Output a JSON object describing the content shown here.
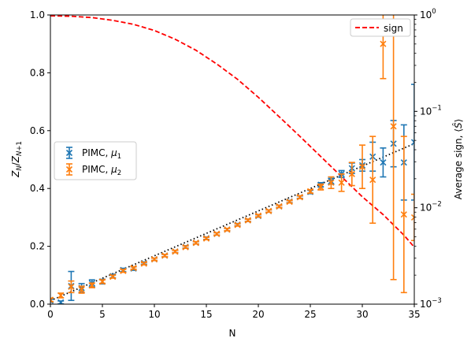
{
  "chart_data": {
    "type": "scatter",
    "title": "",
    "xlabel": "N",
    "ylabel_left": "Z_N/Z_{N+1}",
    "ylabel_right": "Average sign, ⟨Ŝ⟩",
    "xlim": [
      0,
      35
    ],
    "ylim_left": [
      0,
      1.0
    ],
    "ylim_right": [
      0.001,
      1.0
    ],
    "right_scale": "log",
    "grid": false,
    "x_ticks": [
      "0",
      "5",
      "10",
      "15",
      "20",
      "25",
      "30",
      "35"
    ],
    "y_ticks_left": [
      "0.0",
      "0.2",
      "0.4",
      "0.6",
      "0.8",
      "1.0"
    ],
    "y_ticks_right": [
      "10",
      "10",
      "10",
      "10"
    ],
    "y_ticks_right_exp": [
      "−3",
      "−2",
      "−1",
      "0"
    ],
    "series": [
      {
        "name": "PIMC, μ₁",
        "label_main": "PIMC, ",
        "label_mu": "μ",
        "label_sub": "1",
        "color": "#1f77b4",
        "axis": "left",
        "marker": "x",
        "x": [
          0,
          1,
          2,
          3,
          4,
          5,
          6,
          7,
          8,
          9,
          10,
          11,
          12,
          13,
          14,
          15,
          16,
          17,
          18,
          19,
          20,
          21,
          22,
          23,
          24,
          25,
          26,
          27,
          28,
          29,
          30,
          31,
          32,
          33,
          34,
          35
        ],
        "y": [
          0.012,
          0.006,
          0.063,
          0.056,
          0.072,
          0.078,
          0.097,
          0.118,
          0.123,
          0.142,
          0.155,
          0.168,
          0.182,
          0.198,
          0.212,
          0.228,
          0.243,
          0.258,
          0.275,
          0.29,
          0.305,
          0.322,
          0.338,
          0.355,
          0.37,
          0.388,
          0.413,
          0.425,
          0.45,
          0.47,
          0.48,
          0.51,
          0.49,
          0.555,
          0.49,
          0.56
        ],
        "err": [
          0.005,
          0.005,
          0.05,
          0.015,
          0.012,
          0.008,
          0.006,
          0.006,
          0.006,
          0.004,
          0.004,
          0.004,
          0.004,
          0.004,
          0.004,
          0.004,
          0.004,
          0.004,
          0.004,
          0.004,
          0.004,
          0.004,
          0.004,
          0.004,
          0.004,
          0.006,
          0.007,
          0.01,
          0.012,
          0.018,
          0.02,
          0.05,
          0.05,
          0.08,
          0.13,
          0.2
        ]
      },
      {
        "name": "PIMC, μ₂",
        "label_main": "PIMC, ",
        "label_mu": "μ",
        "label_sub": "2",
        "color": "#ff7f0e",
        "axis": "left",
        "marker": "x",
        "x": [
          0,
          1,
          2,
          3,
          4,
          5,
          6,
          7,
          8,
          9,
          10,
          11,
          12,
          13,
          14,
          15,
          16,
          17,
          18,
          19,
          20,
          21,
          22,
          23,
          24,
          25,
          26,
          27,
          28,
          29,
          30,
          31,
          32,
          33,
          34,
          35
        ],
        "y": [
          0.015,
          0.03,
          0.06,
          0.05,
          0.065,
          0.078,
          0.095,
          0.115,
          0.125,
          0.14,
          0.155,
          0.168,
          0.182,
          0.197,
          0.212,
          0.227,
          0.243,
          0.258,
          0.274,
          0.29,
          0.306,
          0.322,
          0.338,
          0.354,
          0.37,
          0.39,
          0.405,
          0.42,
          0.42,
          0.45,
          0.475,
          0.43,
          0.9,
          0.615,
          0.31,
          0.3
        ],
        "err": [
          0.006,
          0.008,
          0.02,
          0.012,
          0.008,
          0.006,
          0.005,
          0.005,
          0.004,
          0.004,
          0.004,
          0.004,
          0.004,
          0.004,
          0.004,
          0.004,
          0.004,
          0.004,
          0.004,
          0.004,
          0.004,
          0.004,
          0.004,
          0.004,
          0.005,
          0.006,
          0.01,
          0.02,
          0.03,
          0.04,
          0.075,
          0.15,
          0.12,
          0.53,
          0.27,
          0.08
        ]
      },
      {
        "name": "fit",
        "color": "#000000",
        "axis": "left",
        "style": "dotted",
        "x": [
          0,
          35
        ],
        "y": [
          0.012,
          0.555
        ]
      },
      {
        "name": "sign",
        "color": "#ff0000",
        "axis": "right",
        "style": "dashed",
        "x": [
          0,
          2,
          4,
          6,
          8,
          10,
          12,
          14,
          16,
          18,
          20,
          22,
          24,
          26,
          28,
          30,
          32,
          34,
          35
        ],
        "y": [
          0.98,
          0.97,
          0.94,
          0.88,
          0.8,
          0.69,
          0.56,
          0.43,
          0.31,
          0.215,
          0.14,
          0.088,
          0.055,
          0.034,
          0.021,
          0.013,
          0.0085,
          0.0052,
          0.0039
        ]
      }
    ],
    "legends": [
      {
        "entries": [
          "sign"
        ],
        "placement": "top-right"
      },
      {
        "entries": [
          "PIMC, μ₁",
          "PIMC, μ₂"
        ],
        "placement": "center-left"
      }
    ]
  }
}
